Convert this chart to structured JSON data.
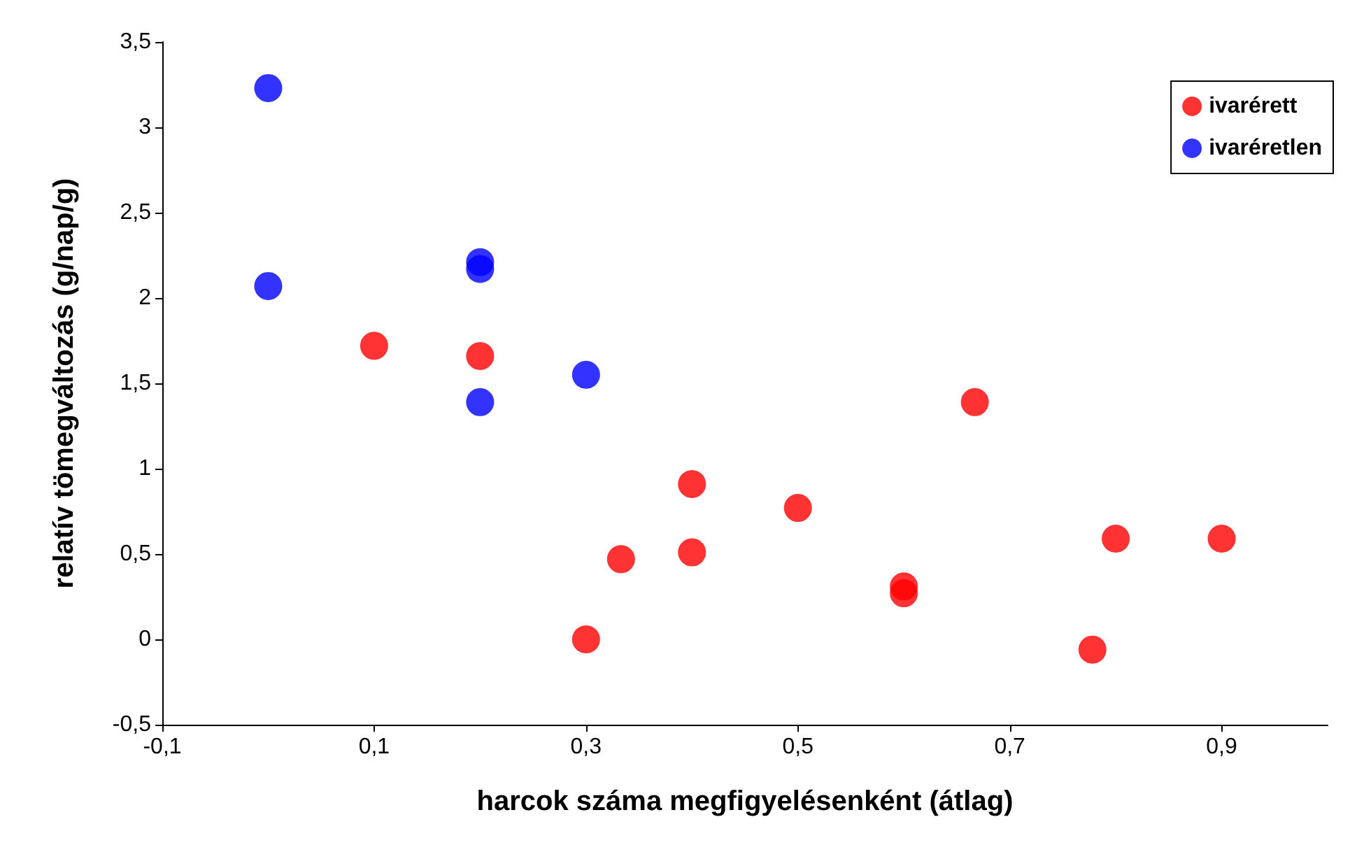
{
  "chart_data": {
    "type": "scatter",
    "xlabel": "harcok száma megfigyelésenként (átlag)",
    "ylabel": "relatív tömegváltozás (g/nap/g)",
    "xlim": [
      -0.1,
      1.0
    ],
    "xticks": [
      {
        "value": -0.1,
        "label": "-0,1"
      },
      {
        "value": 0.1,
        "label": "0,1"
      },
      {
        "value": 0.3,
        "label": "0,3"
      },
      {
        "value": 0.5,
        "label": "0,5"
      },
      {
        "value": 0.7,
        "label": "0,7"
      },
      {
        "value": 0.9,
        "label": "0,9"
      }
    ],
    "ylim": [
      -0.5,
      3.5
    ],
    "yticks": [
      {
        "value": -0.5,
        "label": "-0,5"
      },
      0,
      {
        "value": 0.5,
        "label": "0,5"
      },
      1,
      {
        "value": 1.5,
        "label": "1,5"
      },
      2,
      {
        "value": 2.5,
        "label": "2,5"
      },
      3,
      {
        "value": 3.5,
        "label": "3,5"
      }
    ],
    "grid": false,
    "legend": "top right",
    "marker": "circle",
    "series": [
      {
        "name": "ivarérett",
        "color": "#ff0000",
        "x": [
          0.1,
          0.2,
          0.3,
          0.333,
          0.4,
          0.4,
          0.5,
          0.6,
          0.6,
          0.667,
          0.778,
          0.8,
          0.9
        ],
        "values": [
          1.72,
          1.66,
          0,
          0.47,
          0.91,
          0.51,
          0.77,
          0.31,
          0.27,
          1.39,
          -0.06,
          0.59,
          0.59
        ]
      },
      {
        "name": "ivaréretlen",
        "color": "#0000ff",
        "x": [
          0,
          0,
          0.2,
          0.2,
          0.2,
          0.3
        ],
        "values": [
          3.23,
          2.07,
          2.21,
          2.17,
          1.39,
          1.55
        ]
      }
    ]
  }
}
